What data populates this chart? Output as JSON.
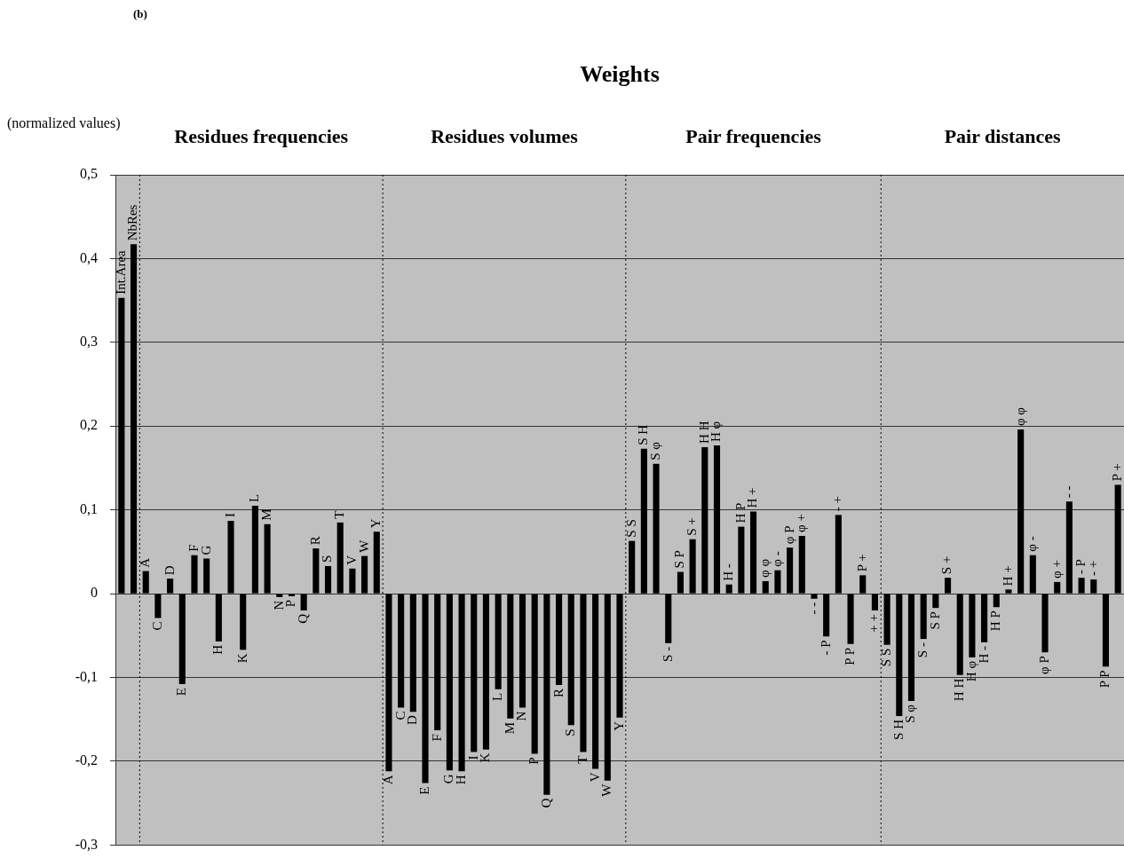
{
  "chart_data": {
    "type": "bar",
    "title": "Weights",
    "ylabel": "(normalized values)",
    "annotations": [
      "(b)",
      "Residues frequencies",
      "Residues volumes",
      "Pair frequencies",
      "Pair distances"
    ],
    "categories": [
      "Int.Area",
      "NbRes",
      "A",
      "C",
      "D",
      "E",
      "F",
      "G",
      "H",
      "I",
      "K",
      "L",
      "M",
      "N",
      "P",
      "Q",
      "R",
      "S",
      "T",
      "V",
      "W",
      "Y",
      "A",
      "C",
      "D",
      "E",
      "F",
      "G",
      "H",
      "I",
      "K",
      "L",
      "M",
      "N",
      "P",
      "Q",
      "R",
      "S",
      "T",
      "V",
      "W",
      "Y",
      "S S",
      "S H",
      "S φ",
      "S -",
      "S P",
      "S +",
      "H H",
      "H φ",
      "H -",
      "H P",
      "H +",
      "φ φ",
      "φ -",
      "φ P",
      "φ +",
      "- -",
      "- P",
      "- +",
      "P P",
      "P +",
      "+ +",
      "S S",
      "S H",
      "S φ",
      "S -",
      "S P",
      "S +",
      "H H",
      "H φ",
      "H -",
      "H P",
      "H +",
      "φ φ",
      "φ -",
      "φ P",
      "φ +",
      "- -",
      "- P",
      "- +",
      "P P",
      "P +"
    ],
    "values": [
      0.353,
      0.417,
      0.027,
      -0.029,
      0.018,
      -0.108,
      0.046,
      0.042,
      -0.057,
      0.087,
      -0.067,
      0.105,
      0.083,
      -0.004,
      -0.003,
      -0.02,
      0.054,
      0.033,
      0.085,
      0.03,
      0.045,
      0.074,
      -0.212,
      -0.136,
      -0.141,
      -0.226,
      -0.163,
      -0.211,
      -0.212,
      -0.189,
      -0.186,
      -0.114,
      -0.149,
      -0.136,
      -0.191,
      -0.24,
      -0.109,
      -0.157,
      -0.189,
      -0.209,
      -0.223,
      -0.148,
      0.063,
      0.173,
      0.155,
      -0.059,
      0.026,
      0.065,
      0.175,
      0.177,
      0.011,
      0.08,
      0.098,
      0.015,
      0.028,
      0.055,
      0.069,
      -0.006,
      -0.051,
      0.094,
      -0.06,
      0.022,
      -0.02,
      -0.061,
      -0.146,
      -0.128,
      -0.054,
      -0.017,
      0.019,
      -0.097,
      -0.076,
      -0.058,
      -0.016,
      0.005,
      0.196,
      0.046,
      -0.07,
      0.014,
      0.11,
      0.019,
      0.017,
      -0.087,
      0.13
    ],
    "color": "#000000",
    "ylim": [
      -0.3,
      0.5
    ],
    "yticks": [
      {
        "value": -0.3,
        "label": "-0,3"
      },
      {
        "value": -0.2,
        "label": "-0,2"
      },
      {
        "value": -0.1,
        "label": "-0,1"
      },
      0,
      {
        "value": 0.1,
        "label": "0,1"
      },
      {
        "value": 0.2,
        "label": "0,2"
      },
      {
        "value": 0.3,
        "label": "0,3"
      },
      {
        "value": 0.4,
        "label": "0,4"
      },
      {
        "value": 0.5,
        "label": "0,5"
      }
    ],
    "grid": "y",
    "legend": false,
    "tick_labels": "y"
  }
}
